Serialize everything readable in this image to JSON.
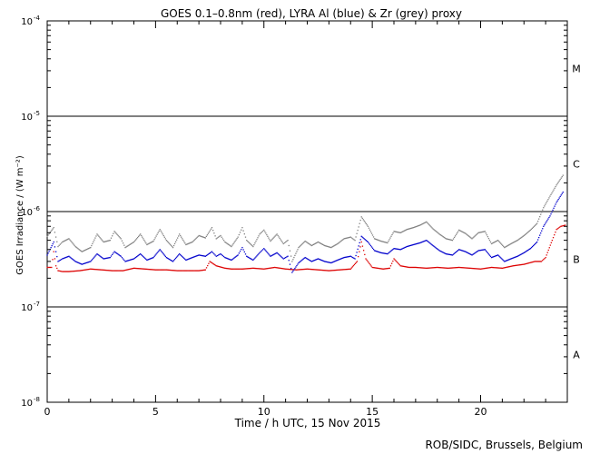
{
  "chart_data": {
    "type": "scatter",
    "title": "GOES 0.1–0.8nm (red), LYRA Al (blue) & Zr (grey) proxy",
    "xlabel": "Time / h UTC, 15 Nov 2015",
    "ylabel": "GOES Irradiance / (W m⁻²)",
    "credit": "ROB/SIDC, Brussels, Belgium",
    "xlim": [
      0,
      24
    ],
    "ylim": [
      1e-08,
      0.0001
    ],
    "yscale": "log",
    "x_ticks": [
      "0",
      "5",
      "10",
      "15",
      "20"
    ],
    "x_tick_values": [
      0,
      5,
      10,
      15,
      20
    ],
    "y_ticks": [
      {
        "value": 1e-08,
        "base": "10",
        "exp": "-8"
      },
      {
        "value": 1e-07,
        "base": "10",
        "exp": "-7"
      },
      {
        "value": 1e-06,
        "base": "10",
        "exp": "-6"
      },
      {
        "value": 1e-05,
        "base": "10",
        "exp": "-5"
      },
      {
        "value": 0.0001,
        "base": "10",
        "exp": "-4"
      }
    ],
    "flare_class_lines": [
      1e-07,
      1e-06,
      1e-05
    ],
    "flare_classes": [
      {
        "label": "A",
        "value": 3.16e-08
      },
      {
        "label": "B",
        "value": 3.16e-07
      },
      {
        "label": "C",
        "value": 3.16e-06
      },
      {
        "label": "M",
        "value": 3.16e-05
      }
    ],
    "colors": {
      "goes": "#dd0000",
      "al": "#0000cc",
      "zr": "#808080",
      "axis": "#000000"
    },
    "series": [
      {
        "name": "GOES 0.1-0.8nm",
        "color": "#dd0000",
        "x": [
          0,
          0.2,
          0.3,
          0.4,
          0.5,
          0.7,
          1.0,
          1.5,
          2.0,
          2.5,
          3.0,
          3.5,
          4.0,
          4.5,
          5.0,
          5.5,
          6.0,
          6.5,
          7.0,
          7.3,
          7.5,
          7.8,
          8.2,
          8.5,
          9.0,
          9.5,
          10.0,
          10.5,
          11.0,
          11.5,
          12.0,
          12.5,
          13.0,
          13.5,
          14.0,
          14.3,
          14.5,
          14.7,
          15.0,
          15.5,
          15.8,
          16.0,
          16.3,
          16.7,
          17.0,
          17.5,
          18.0,
          18.5,
          19.0,
          19.5,
          20.0,
          20.5,
          21.0,
          21.5,
          22.0,
          22.5,
          22.8,
          23.0,
          23.3,
          23.5,
          23.7,
          23.9
        ],
        "y": [
          2.6e-07,
          2.6e-07,
          3.8e-07,
          2.7e-07,
          2.4e-07,
          2.35e-07,
          2.35e-07,
          2.4e-07,
          2.5e-07,
          2.45e-07,
          2.4e-07,
          2.4e-07,
          2.55e-07,
          2.5e-07,
          2.45e-07,
          2.45e-07,
          2.4e-07,
          2.4e-07,
          2.4e-07,
          2.45e-07,
          3e-07,
          2.7e-07,
          2.55e-07,
          2.5e-07,
          2.5e-07,
          2.55e-07,
          2.5e-07,
          2.6e-07,
          2.5e-07,
          2.45e-07,
          2.5e-07,
          2.45e-07,
          2.4e-07,
          2.45e-07,
          2.5e-07,
          3e-07,
          4.8e-07,
          3.2e-07,
          2.6e-07,
          2.5e-07,
          2.55e-07,
          3.2e-07,
          2.7e-07,
          2.6e-07,
          2.6e-07,
          2.55e-07,
          2.6e-07,
          2.55e-07,
          2.6e-07,
          2.55e-07,
          2.5e-07,
          2.6e-07,
          2.55e-07,
          2.7e-07,
          2.8e-07,
          3e-07,
          3e-07,
          3.3e-07,
          5e-07,
          6.5e-07,
          7e-07,
          7.2e-07
        ]
      },
      {
        "name": "LYRA Al proxy",
        "color": "#0000cc",
        "x": [
          0,
          0.3,
          0.5,
          0.7,
          1.0,
          1.3,
          1.6,
          2.0,
          2.3,
          2.6,
          2.9,
          3.1,
          3.4,
          3.6,
          4.0,
          4.3,
          4.6,
          4.9,
          5.2,
          5.5,
          5.8,
          6.1,
          6.4,
          6.7,
          7.0,
          7.3,
          7.6,
          7.8,
          8.0,
          8.2,
          8.5,
          8.8,
          9.0,
          9.2,
          9.5,
          9.8,
          10.0,
          10.3,
          10.6,
          10.9,
          11.1,
          11.3,
          11.6,
          11.9,
          12.2,
          12.5,
          12.8,
          13.1,
          13.4,
          13.7,
          14.0,
          14.2,
          14.5,
          14.8,
          15.1,
          15.4,
          15.7,
          16.0,
          16.3,
          16.6,
          16.9,
          17.2,
          17.5,
          17.8,
          18.1,
          18.4,
          18.7,
          19.0,
          19.3,
          19.6,
          19.9,
          20.2,
          20.5,
          20.8,
          21.1,
          21.4,
          21.7,
          22.0,
          22.3,
          22.6,
          22.9,
          23.2,
          23.5,
          23.8
        ],
        "y": [
          3.5e-07,
          4.8e-07,
          3e-07,
          3.2e-07,
          3.4e-07,
          3e-07,
          2.8e-07,
          3e-07,
          3.6e-07,
          3.2e-07,
          3.3e-07,
          3.8e-07,
          3.4e-07,
          3e-07,
          3.2e-07,
          3.6e-07,
          3.1e-07,
          3.3e-07,
          4e-07,
          3.3e-07,
          3e-07,
          3.6e-07,
          3.1e-07,
          3.3e-07,
          3.5e-07,
          3.4e-07,
          3.8e-07,
          3.4e-07,
          3.6e-07,
          3.3e-07,
          3.1e-07,
          3.5e-07,
          4.2e-07,
          3.4e-07,
          3.1e-07,
          3.7e-07,
          4.1e-07,
          3.4e-07,
          3.7e-07,
          3.2e-07,
          3.4e-07,
          2.3e-07,
          2.9e-07,
          3.3e-07,
          3e-07,
          3.2e-07,
          3e-07,
          2.9e-07,
          3.1e-07,
          3.3e-07,
          3.4e-07,
          3.2e-07,
          5.5e-07,
          4.8e-07,
          3.9e-07,
          3.7e-07,
          3.6e-07,
          4.1e-07,
          4e-07,
          4.3e-07,
          4.5e-07,
          4.7e-07,
          5e-07,
          4.4e-07,
          3.9e-07,
          3.6e-07,
          3.5e-07,
          4e-07,
          3.8e-07,
          3.5e-07,
          3.9e-07,
          4e-07,
          3.3e-07,
          3.5e-07,
          3e-07,
          3.2e-07,
          3.4e-07,
          3.7e-07,
          4.1e-07,
          4.8e-07,
          7e-07,
          9e-07,
          1.25e-06,
          1.6e-06
        ]
      },
      {
        "name": "LYRA Zr proxy",
        "color": "#808080",
        "x": [
          0,
          0.3,
          0.5,
          0.7,
          1.0,
          1.3,
          1.6,
          2.0,
          2.3,
          2.6,
          2.9,
          3.1,
          3.4,
          3.6,
          4.0,
          4.3,
          4.6,
          4.9,
          5.2,
          5.5,
          5.8,
          6.1,
          6.4,
          6.7,
          7.0,
          7.3,
          7.6,
          7.8,
          8.0,
          8.2,
          8.5,
          8.8,
          9.0,
          9.2,
          9.5,
          9.8,
          10.0,
          10.3,
          10.6,
          10.9,
          11.1,
          11.3,
          11.6,
          11.9,
          12.2,
          12.5,
          12.8,
          13.1,
          13.4,
          13.7,
          14.0,
          14.2,
          14.5,
          14.8,
          15.1,
          15.4,
          15.7,
          16.0,
          16.3,
          16.6,
          16.9,
          17.2,
          17.5,
          17.8,
          18.1,
          18.4,
          18.7,
          19.0,
          19.3,
          19.6,
          19.9,
          20.2,
          20.5,
          20.8,
          21.1,
          21.4,
          21.7,
          22.0,
          22.3,
          22.6,
          22.9,
          23.2,
          23.5,
          23.8
        ],
        "y": [
          5.5e-07,
          6.8e-07,
          4.3e-07,
          4.8e-07,
          5.2e-07,
          4.3e-07,
          3.8e-07,
          4.2e-07,
          5.8e-07,
          4.8e-07,
          5e-07,
          6.2e-07,
          5.2e-07,
          4.2e-07,
          4.8e-07,
          5.8e-07,
          4.5e-07,
          4.9e-07,
          6.5e-07,
          5e-07,
          4.2e-07,
          5.8e-07,
          4.5e-07,
          4.8e-07,
          5.6e-07,
          5.3e-07,
          6.8e-07,
          5.2e-07,
          5.6e-07,
          4.8e-07,
          4.3e-07,
          5.4e-07,
          6.8e-07,
          5e-07,
          4.3e-07,
          5.8e-07,
          6.4e-07,
          4.9e-07,
          5.8e-07,
          4.6e-07,
          5e-07,
          3e-07,
          4.2e-07,
          4.9e-07,
          4.4e-07,
          4.8e-07,
          4.4e-07,
          4.2e-07,
          4.6e-07,
          5.2e-07,
          5.4e-07,
          5e-07,
          8.8e-07,
          7e-07,
          5.2e-07,
          4.9e-07,
          4.7e-07,
          6.2e-07,
          6e-07,
          6.5e-07,
          6.8e-07,
          7.2e-07,
          7.8e-07,
          6.6e-07,
          5.8e-07,
          5.2e-07,
          5e-07,
          6.4e-07,
          5.9e-07,
          5.2e-07,
          6e-07,
          6.2e-07,
          4.6e-07,
          5e-07,
          4.2e-07,
          4.6e-07,
          5e-07,
          5.6e-07,
          6.4e-07,
          7.5e-07,
          1.1e-06,
          1.45e-06,
          1.9e-06,
          2.4e-06
        ]
      }
    ]
  }
}
